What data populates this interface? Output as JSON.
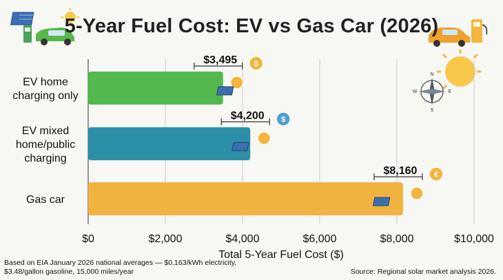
{
  "title": "5-Year Fuel Cost: EV vs Gas Car (2026)",
  "chart_data": {
    "type": "bar",
    "orientation": "horizontal",
    "categories": [
      "EV home charging only",
      "EV mixed home/public charging",
      "Gas car"
    ],
    "category_lines": [
      [
        "EV home",
        "charging only"
      ],
      [
        "EV mixed",
        "home/public",
        "charging"
      ],
      [
        "Gas car"
      ]
    ],
    "values": [
      3495,
      4200,
      8160
    ],
    "value_labels": [
      "$3,495",
      "$4,200",
      "$8,160"
    ],
    "bar_colors": [
      "#52b94e",
      "#2c8fa8",
      "#f0b33f"
    ],
    "xlabel": "Total 5-Year Fuel Cost ($)",
    "xlim": [
      0,
      10000
    ],
    "ticks": [
      0,
      2000,
      4000,
      6000,
      8000,
      10000
    ],
    "tick_labels": [
      "$0",
      "$2,000",
      "$4,000",
      "$6,000",
      "$8,000",
      "$10,000"
    ],
    "grid": true
  },
  "footnote": "Based on EIA January 2026 national averages — $0.163/kWh electricity, $3.48/gallon gasoline, 15,000 miles/year",
  "source": "Source: Regional solar market analysis 2026.",
  "icons": {
    "coin_symbols": [
      "$",
      "$",
      "€"
    ],
    "compass_letters": [
      "N",
      "E",
      "S",
      "W"
    ]
  }
}
